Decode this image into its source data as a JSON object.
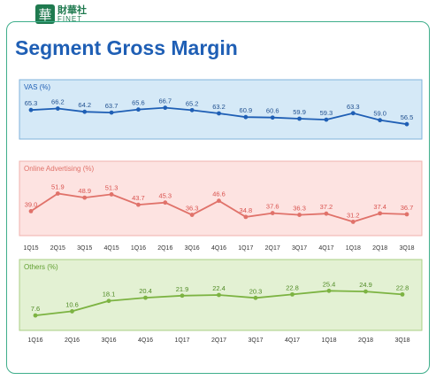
{
  "logo": {
    "mark": "華",
    "cn": "財華社",
    "en": "FINET"
  },
  "title": "Segment Gross Margin",
  "chart_data": [
    {
      "type": "line",
      "title": "VAS (%)",
      "categories": [
        "1Q15",
        "2Q15",
        "3Q15",
        "4Q15",
        "1Q16",
        "2Q16",
        "3Q16",
        "4Q16",
        "1Q17",
        "2Q17",
        "3Q17",
        "4Q17",
        "1Q18",
        "2Q18",
        "3Q18"
      ],
      "series": [
        {
          "values": [
            65.3,
            66.2,
            64.2,
            63.7,
            65.6,
            66.7,
            65.2,
            63.2,
            60.9,
            60.6,
            59.9,
            59.3,
            63.3,
            59.0,
            56.5
          ]
        }
      ],
      "ylim": [
        50,
        72
      ],
      "colors": {
        "line": "#1f5fb5",
        "panel": "#d5e9f7",
        "border": "#7fb2db",
        "label": "#1f5fb5",
        "value": "#1f4f8f"
      }
    },
    {
      "type": "line",
      "title": "Online Advertising (%)",
      "categories": [
        "1Q15",
        "2Q15",
        "3Q15",
        "4Q15",
        "1Q16",
        "2Q16",
        "3Q16",
        "4Q16",
        "1Q17",
        "2Q17",
        "3Q17",
        "4Q17",
        "1Q18",
        "2Q18",
        "3Q18"
      ],
      "series": [
        {
          "values": [
            39.0,
            51.9,
            48.9,
            51.3,
            43.7,
            45.3,
            36.3,
            46.6,
            34.8,
            37.6,
            36.3,
            37.2,
            31.2,
            37.4,
            36.7
          ]
        }
      ],
      "ylim": [
        25,
        60
      ],
      "colors": {
        "line": "#e0726a",
        "panel": "#fde3e1",
        "border": "#f0b2ad",
        "label": "#e0726a",
        "value": "#d9534f"
      }
    },
    {
      "type": "line",
      "title": "Others (%)",
      "categories": [
        "1Q16",
        "2Q16",
        "3Q16",
        "4Q16",
        "1Q17",
        "2Q17",
        "3Q17",
        "4Q17",
        "1Q18",
        "2Q18",
        "3Q18"
      ],
      "series": [
        {
          "values": [
            7.6,
            10.6,
            18.1,
            20.4,
            21.9,
            22.4,
            20.3,
            22.8,
            25.4,
            24.9,
            22.8
          ]
        }
      ],
      "ylim": [
        0,
        32
      ],
      "colors": {
        "line": "#7cb342",
        "panel": "#e3f1d3",
        "border": "#a9cf83",
        "label": "#5f9e2f",
        "value": "#4f8a24"
      }
    }
  ]
}
